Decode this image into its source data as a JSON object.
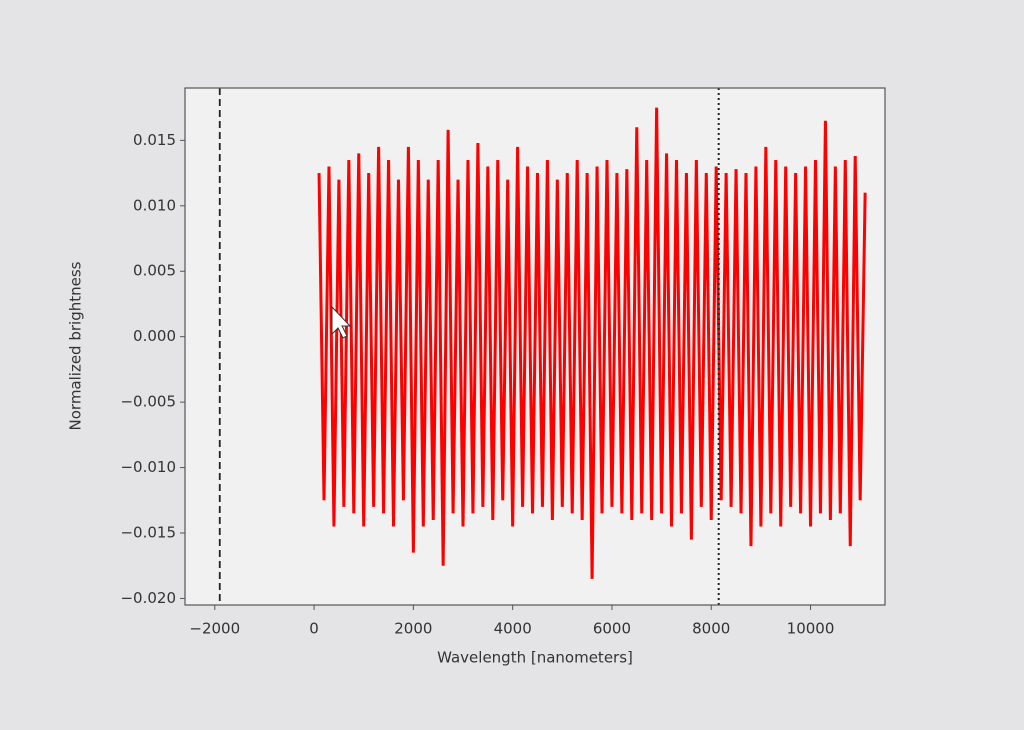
{
  "chart_data": {
    "type": "line",
    "xlabel": "Wavelength [nanometers]",
    "ylabel": "Normalized brightness",
    "color": "#ff0000",
    "x": [
      100,
      200,
      300,
      400,
      500,
      600,
      700,
      800,
      900,
      1000,
      1100,
      1200,
      1300,
      1400,
      1500,
      1600,
      1700,
      1800,
      1900,
      2000,
      2100,
      2200,
      2300,
      2400,
      2500,
      2600,
      2700,
      2800,
      2900,
      3000,
      3100,
      3200,
      3300,
      3400,
      3500,
      3600,
      3700,
      3800,
      3900,
      4000,
      4100,
      4200,
      4300,
      4400,
      4500,
      4600,
      4700,
      4800,
      4900,
      5000,
      5100,
      5200,
      5300,
      5400,
      5500,
      5600,
      5700,
      5800,
      5900,
      6000,
      6100,
      6200,
      6300,
      6400,
      6500,
      6600,
      6700,
      6800,
      6900,
      7000,
      7100,
      7200,
      7300,
      7400,
      7500,
      7600,
      7700,
      7800,
      7900,
      8000,
      8100,
      8200,
      8300,
      8400,
      8500,
      8600,
      8700,
      8800,
      8900,
      9000,
      9100,
      9200,
      9300,
      9400,
      9500,
      9600,
      9700,
      9800,
      9900,
      10000,
      10100,
      10200,
      10300,
      10400,
      10500,
      10600,
      10700,
      10800,
      10900,
      11000,
      11100
    ],
    "values": [
      0.0125,
      -0.0125,
      0.013,
      -0.0145,
      0.012,
      -0.013,
      0.0135,
      -0.0135,
      0.014,
      -0.0145,
      0.0125,
      -0.013,
      0.0145,
      -0.0135,
      0.0135,
      -0.0145,
      0.012,
      -0.0125,
      0.0145,
      -0.0165,
      0.0135,
      -0.0145,
      0.012,
      -0.014,
      0.0135,
      -0.0175,
      0.0158,
      -0.0135,
      0.012,
      -0.0145,
      0.0135,
      -0.0135,
      0.0148,
      -0.013,
      0.013,
      -0.014,
      0.0135,
      -0.0125,
      0.012,
      -0.0145,
      0.0145,
      -0.013,
      0.013,
      -0.0135,
      0.0125,
      -0.013,
      0.0135,
      -0.014,
      0.012,
      -0.013,
      0.0125,
      -0.0135,
      0.0135,
      -0.014,
      0.0125,
      -0.0185,
      0.013,
      -0.0135,
      0.0135,
      -0.013,
      0.0125,
      -0.0135,
      0.0128,
      -0.014,
      0.016,
      -0.0135,
      0.0135,
      -0.014,
      0.0175,
      -0.0135,
      0.014,
      -0.0145,
      0.0135,
      -0.0135,
      0.0125,
      -0.0155,
      0.0135,
      -0.013,
      0.0125,
      -0.014,
      0.013,
      -0.0125,
      0.0125,
      -0.013,
      0.0128,
      -0.0135,
      0.0125,
      -0.016,
      0.013,
      -0.0145,
      0.0145,
      -0.0135,
      0.0135,
      -0.0145,
      0.013,
      -0.013,
      0.0125,
      -0.0135,
      0.013,
      -0.0145,
      0.0135,
      -0.0135,
      0.0165,
      -0.014,
      0.013,
      -0.0135,
      0.0135,
      -0.016,
      0.0138,
      -0.0125,
      0.011
    ],
    "vlines": [
      {
        "x": -1900,
        "style": "dashed"
      },
      {
        "x": 8150,
        "style": "dotted"
      }
    ],
    "xlim": [
      -2600,
      11500
    ],
    "ylim": [
      -0.0205,
      0.019
    ],
    "xticks": [
      {
        "value": -2000,
        "label": "−2000"
      },
      0,
      2000,
      4000,
      6000,
      8000,
      10000
    ],
    "yticks": [
      {
        "value": -0.02,
        "label": "−0.020"
      },
      {
        "value": -0.015,
        "label": "−0.015"
      },
      {
        "value": -0.01,
        "label": "−0.010"
      },
      {
        "value": -0.005,
        "label": "−0.005"
      },
      {
        "value": 0,
        "label": "0.000"
      },
      {
        "value": 0.005,
        "label": "0.005"
      },
      {
        "value": 0.01,
        "label": "0.010"
      },
      0.015
    ]
  }
}
